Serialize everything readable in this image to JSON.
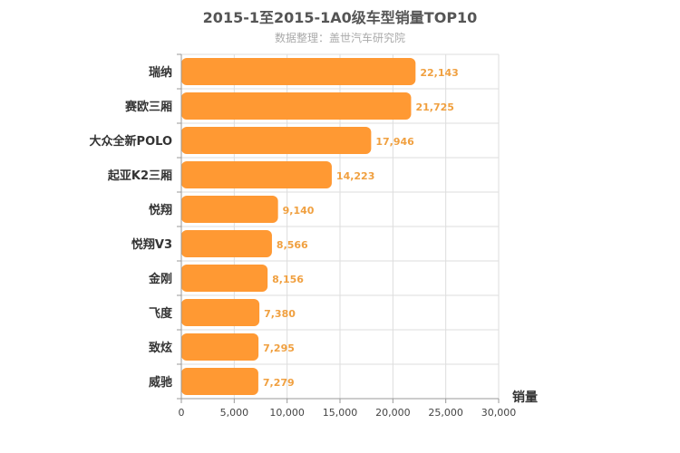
{
  "chart_data": {
    "type": "bar",
    "orientation": "horizontal",
    "title": "2015-1至2015-1A0级车型销量TOP10",
    "subtitle": "数据整理：盖世汽车研究院",
    "xlabel": "销量",
    "ylabel": "",
    "categories": [
      "瑞纳",
      "赛欧三厢",
      "大众全新POLO",
      "起亚K2三厢",
      "悦翔",
      "悦翔V3",
      "金刚",
      "飞度",
      "致炫",
      "威驰"
    ],
    "values": [
      22143,
      21725,
      17946,
      14223,
      9140,
      8566,
      8156,
      7380,
      7295,
      7279
    ],
    "value_labels": [
      "22,143",
      "21,725",
      "17,946",
      "14,223",
      "9,140",
      "8,566",
      "8,156",
      "7,380",
      "7,295",
      "7,279"
    ],
    "xlim": [
      0,
      30000
    ],
    "x_ticks": [
      0,
      5000,
      10000,
      15000,
      20000,
      25000,
      30000
    ],
    "x_tick_labels": [
      "0",
      "5,000",
      "10,000",
      "15,000",
      "20,000",
      "25,000",
      "30,000"
    ],
    "grid": true,
    "bar_color": "#ff9933",
    "value_label_color": "#f0a040"
  }
}
